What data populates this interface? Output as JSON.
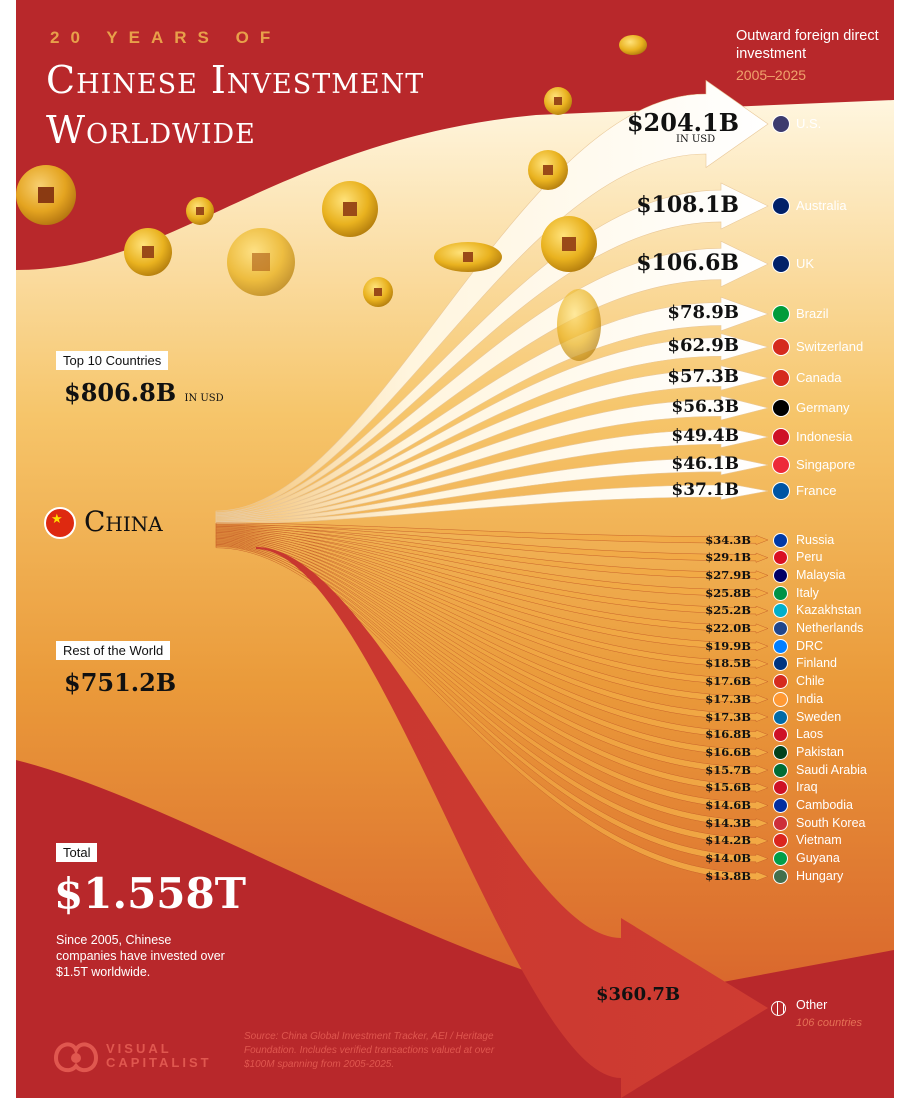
{
  "header": {
    "kicker": "20 YEARS OF",
    "title_line1": "Chinese Investment",
    "title_line2": "Worldwide",
    "subtitle": "Outward foreign direct investment",
    "years": "2005–2025"
  },
  "origin": {
    "label": "China"
  },
  "summary": {
    "top10_label": "Top 10 Countries",
    "top10_value": "$806.8B",
    "top10_unit": "IN USD",
    "rest_label": "Rest of the World",
    "rest_value": "$751.2B",
    "total_label": "Total",
    "total_value": "$1.558T",
    "total_note": "Since 2005, Chinese companies have invested over $1.5T worldwide."
  },
  "source_note": "Source: China Global Investment Tracker, AEI / Heritage Foundation. Includes verified transactions valued at over $100M spanning from 2005-2025.",
  "brand": {
    "line1": "VISUAL",
    "line2": "CAPITALIST"
  },
  "colors": {
    "background": "#b8282b",
    "accent": "#e8a04a",
    "flow_light": "#fff1c8",
    "flow_dark": "#e9a23c"
  },
  "chart_data": {
    "type": "bar",
    "title": "20 YEARS OF Chinese Investment Worldwide",
    "subtitle": "Outward foreign direct investment 2005–2025",
    "unit": "billion USD",
    "categories": [
      "U.S.",
      "Australia",
      "UK",
      "Brazil",
      "Switzerland",
      "Canada",
      "Germany",
      "Indonesia",
      "Singapore",
      "France",
      "Russia",
      "Peru",
      "Malaysia",
      "Italy",
      "Kazakhstan",
      "Netherlands",
      "DRC",
      "Finland",
      "Chile",
      "India",
      "Sweden",
      "Laos",
      "Pakistan",
      "Saudi Arabia",
      "Iraq",
      "Cambodia",
      "South Korea",
      "Vietnam",
      "Guyana",
      "Hungary",
      "Other"
    ],
    "values": [
      204.1,
      108.1,
      106.6,
      78.9,
      62.9,
      57.3,
      56.3,
      49.4,
      46.1,
      37.1,
      34.3,
      29.1,
      27.9,
      25.8,
      25.2,
      22.0,
      19.9,
      18.5,
      17.6,
      17.3,
      17.3,
      16.8,
      16.6,
      15.7,
      15.6,
      14.6,
      14.3,
      14.2,
      14.0,
      13.8,
      360.7
    ],
    "value_labels": [
      "$204.1B",
      "$108.1B",
      "$106.6B",
      "$78.9B",
      "$62.9B",
      "$57.3B",
      "$56.3B",
      "$49.4B",
      "$46.1B",
      "$37.1B",
      "$34.3B",
      "$29.1B",
      "$27.9B",
      "$25.8B",
      "$25.2B",
      "$22.0B",
      "$19.9B",
      "$18.5B",
      "$17.6B",
      "$17.3B",
      "$17.3B",
      "$16.8B",
      "$16.6B",
      "$15.7B",
      "$15.6B",
      "$14.6B",
      "$14.3B",
      "$14.2B",
      "$14.0B",
      "$13.8B",
      "$360.7B"
    ],
    "extra_label_us": "IN USD",
    "other_note": "106 countries"
  }
}
